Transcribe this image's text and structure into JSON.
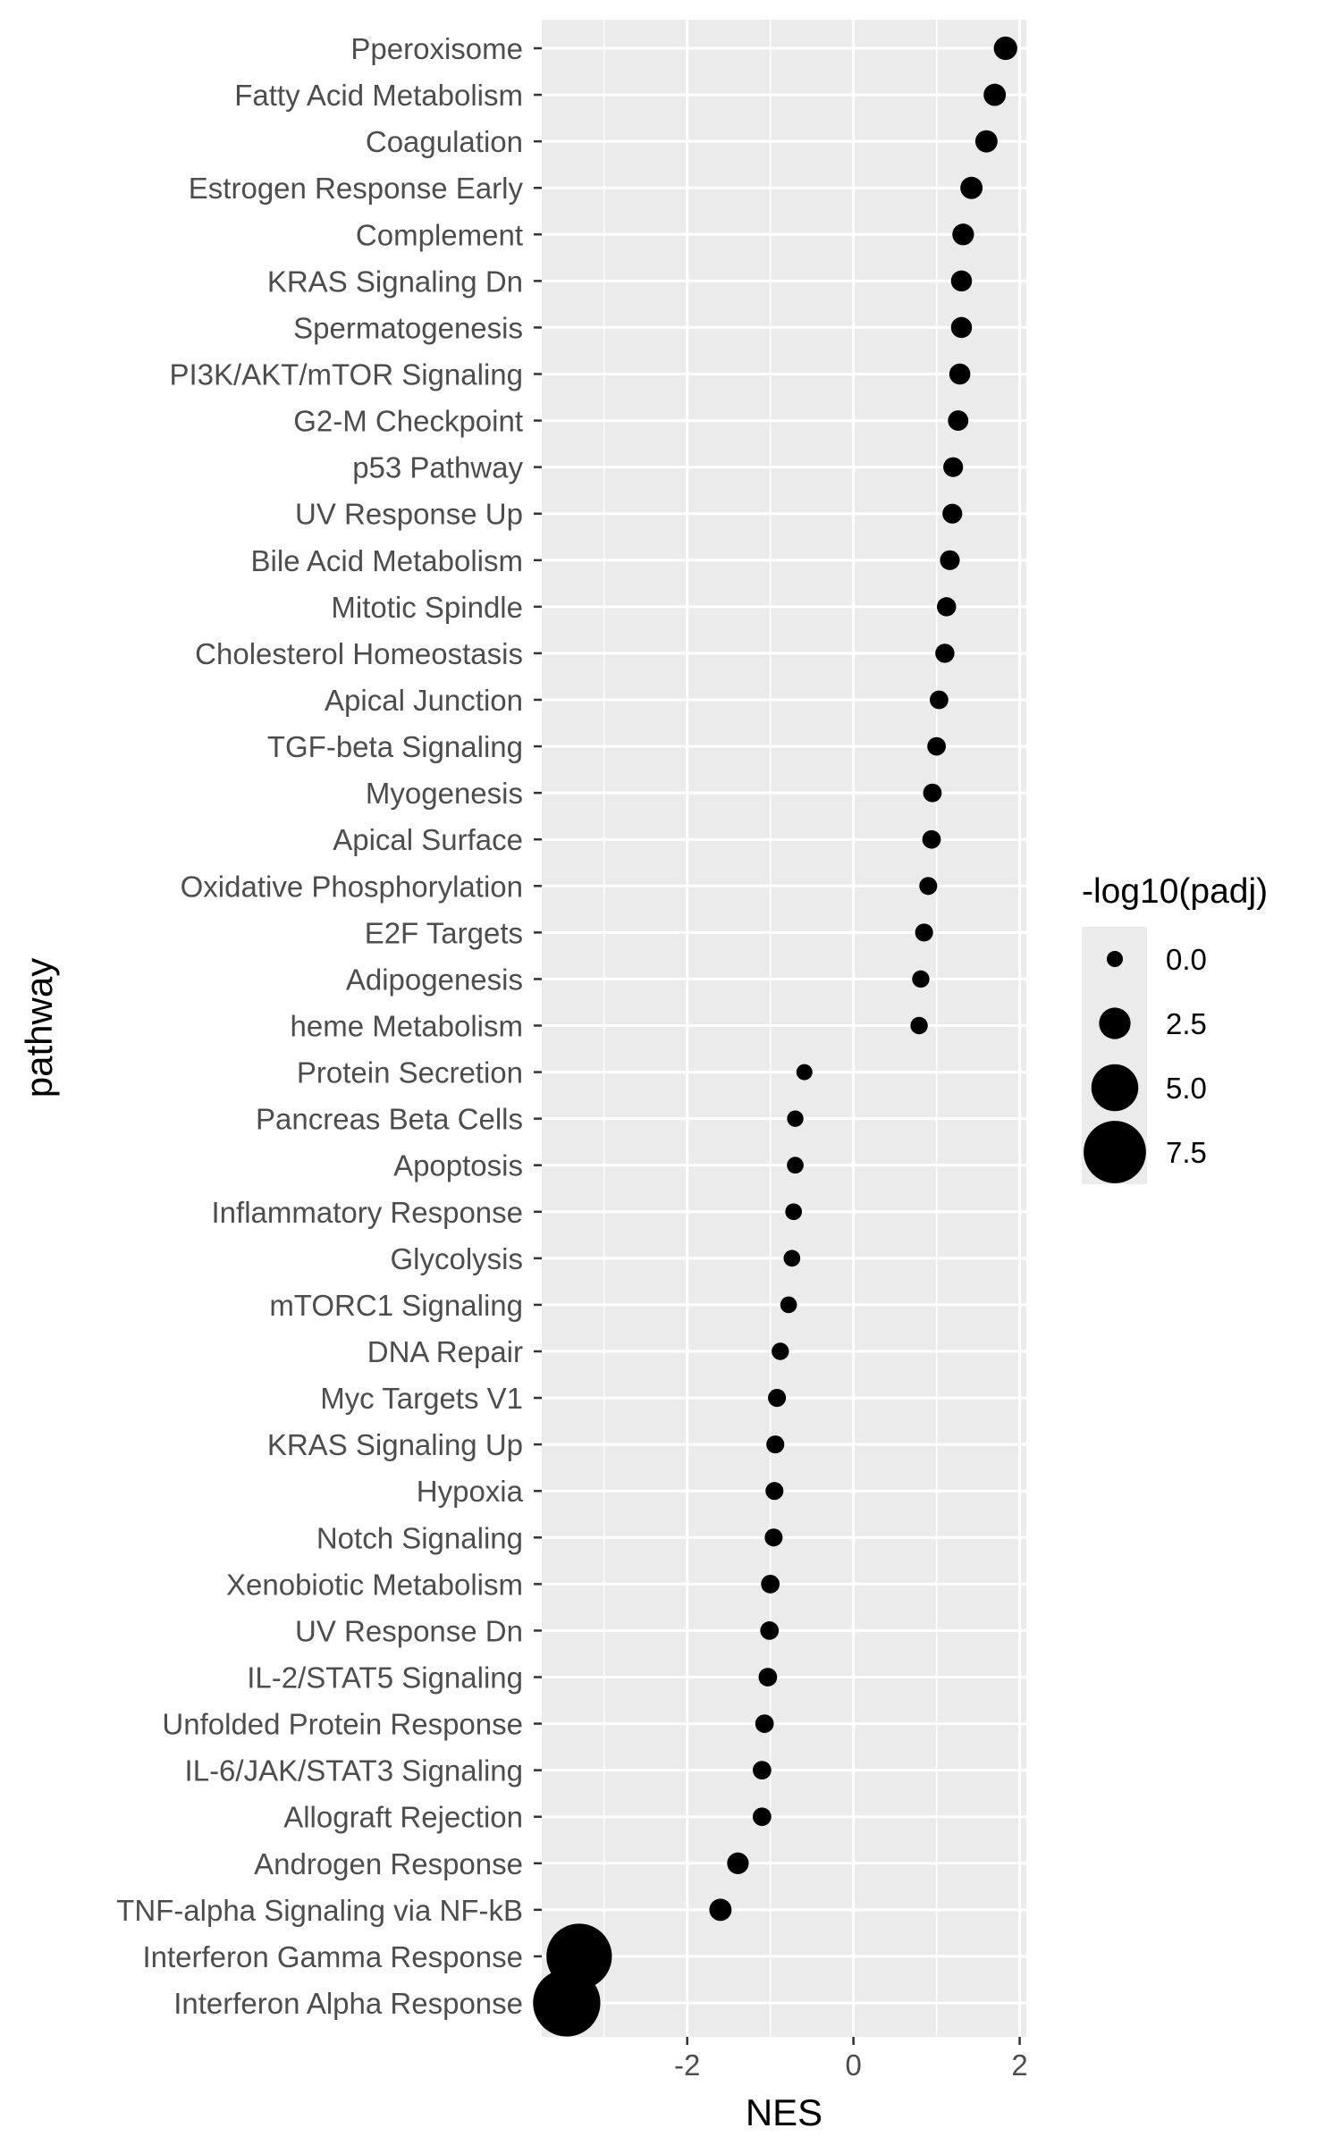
{
  "chart_data": {
    "type": "scatter",
    "xlabel": "NES",
    "ylabel": "pathway",
    "xlim": [
      -3.75,
      2.08
    ],
    "x_ticks": [
      -2,
      0,
      2
    ],
    "x_tick_labels": [
      "-2",
      "0",
      "2"
    ],
    "grid": true,
    "legend": {
      "title": "-log10(padj)",
      "position": "right",
      "values": [
        0.0,
        2.5,
        5.0,
        7.5
      ],
      "labels": [
        "0.0",
        "2.5",
        "5.0",
        "7.5"
      ]
    },
    "points": [
      {
        "pathway": "Pperoxisome",
        "nes": 1.83,
        "neglog10_padj": 1.2
      },
      {
        "pathway": "Fatty Acid Metabolism",
        "nes": 1.7,
        "neglog10_padj": 1.0
      },
      {
        "pathway": "Coagulation",
        "nes": 1.6,
        "neglog10_padj": 1.0
      },
      {
        "pathway": "Estrogen Response Early",
        "nes": 1.42,
        "neglog10_padj": 1.0
      },
      {
        "pathway": "Complement",
        "nes": 1.32,
        "neglog10_padj": 0.9
      },
      {
        "pathway": "KRAS Signaling Dn",
        "nes": 1.3,
        "neglog10_padj": 0.8
      },
      {
        "pathway": "Spermatogenesis",
        "nes": 1.3,
        "neglog10_padj": 0.8
      },
      {
        "pathway": "PI3K/AKT/mTOR  Signaling",
        "nes": 1.28,
        "neglog10_padj": 0.8
      },
      {
        "pathway": "G2-M Checkpoint",
        "nes": 1.26,
        "neglog10_padj": 0.7
      },
      {
        "pathway": "p53 Pathway",
        "nes": 1.2,
        "neglog10_padj": 0.6
      },
      {
        "pathway": "UV Response Up",
        "nes": 1.19,
        "neglog10_padj": 0.6
      },
      {
        "pathway": "Bile Acid Metabolism",
        "nes": 1.16,
        "neglog10_padj": 0.6
      },
      {
        "pathway": "Mitotic Spindle",
        "nes": 1.12,
        "neglog10_padj": 0.5
      },
      {
        "pathway": "Cholesterol Homeostasis",
        "nes": 1.1,
        "neglog10_padj": 0.5
      },
      {
        "pathway": "Apical Junction",
        "nes": 1.03,
        "neglog10_padj": 0.4
      },
      {
        "pathway": "TGF-beta Signaling",
        "nes": 1.0,
        "neglog10_padj": 0.4
      },
      {
        "pathway": "Myogenesis",
        "nes": 0.95,
        "neglog10_padj": 0.4
      },
      {
        "pathway": "Apical Surface",
        "nes": 0.94,
        "neglog10_padj": 0.4
      },
      {
        "pathway": "Oxidative Phosphorylation",
        "nes": 0.9,
        "neglog10_padj": 0.3
      },
      {
        "pathway": "E2F Targets",
        "nes": 0.85,
        "neglog10_padj": 0.3
      },
      {
        "pathway": "Adipogenesis",
        "nes": 0.81,
        "neglog10_padj": 0.2
      },
      {
        "pathway": "heme Metabolism",
        "nes": 0.79,
        "neglog10_padj": 0.2
      },
      {
        "pathway": "Protein Secretion",
        "nes": -0.59,
        "neglog10_padj": 0.0
      },
      {
        "pathway": "Pancreas Beta Cells",
        "nes": -0.7,
        "neglog10_padj": 0.05
      },
      {
        "pathway": "Apoptosis",
        "nes": -0.7,
        "neglog10_padj": 0.1
      },
      {
        "pathway": "Inflammatory Response",
        "nes": -0.72,
        "neglog10_padj": 0.1
      },
      {
        "pathway": "Glycolysis",
        "nes": -0.74,
        "neglog10_padj": 0.1
      },
      {
        "pathway": "mTORC1 Signaling",
        "nes": -0.78,
        "neglog10_padj": 0.1
      },
      {
        "pathway": "DNA Repair",
        "nes": -0.88,
        "neglog10_padj": 0.2
      },
      {
        "pathway": "Myc Targets V1",
        "nes": -0.92,
        "neglog10_padj": 0.3
      },
      {
        "pathway": "KRAS Signaling Up",
        "nes": -0.94,
        "neglog10_padj": 0.3
      },
      {
        "pathway": "Hypoxia",
        "nes": -0.95,
        "neglog10_padj": 0.3
      },
      {
        "pathway": "Notch Signaling",
        "nes": -0.96,
        "neglog10_padj": 0.3
      },
      {
        "pathway": "Xenobiotic Metabolism",
        "nes": -1.0,
        "neglog10_padj": 0.4
      },
      {
        "pathway": "UV Response Dn",
        "nes": -1.01,
        "neglog10_padj": 0.4
      },
      {
        "pathway": "IL-2/STAT5 Signaling",
        "nes": -1.03,
        "neglog10_padj": 0.4
      },
      {
        "pathway": "Unfolded Protein Response",
        "nes": -1.07,
        "neglog10_padj": 0.4
      },
      {
        "pathway": "IL-6/JAK/STAT3 Signaling",
        "nes": -1.1,
        "neglog10_padj": 0.4
      },
      {
        "pathway": "Allograft Rejection",
        "nes": -1.1,
        "neglog10_padj": 0.4
      },
      {
        "pathway": "Androgen Response",
        "nes": -1.39,
        "neglog10_padj": 0.9
      },
      {
        "pathway": "TNF-alpha Signaling via NF-kB",
        "nes": -1.6,
        "neglog10_padj": 1.0
      },
      {
        "pathway": "Interferon Gamma Response",
        "nes": -3.3,
        "neglog10_padj": 8.0
      },
      {
        "pathway": "Interferon Alpha Response",
        "nes": -3.45,
        "neglog10_padj": 8.3
      }
    ]
  }
}
